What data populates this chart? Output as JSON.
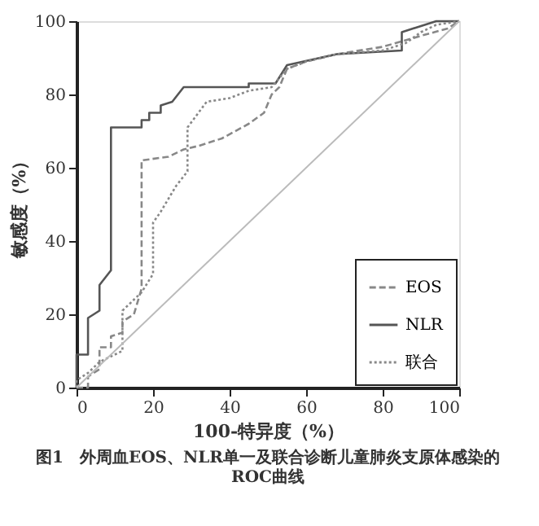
{
  "chart_data": {
    "type": "line",
    "title": "图1　外周血EOS、NLR单一及联合诊断儿童肺炎支原体感染的ROC曲线",
    "xlabel": "100-特异度（%）",
    "ylabel": "敏感度（%）",
    "xlim": [
      0,
      100
    ],
    "xticks": [
      0,
      20,
      40,
      60,
      80,
      100
    ],
    "ylim": [
      0,
      100
    ],
    "yticks": [
      0,
      20,
      40,
      60,
      80,
      100
    ],
    "grid": false,
    "legend": "bottom right",
    "marker": "none",
    "series": [
      {
        "name": "EOS",
        "color": "#888888",
        "line_style": "dashed",
        "x": [
          0,
          3,
          3,
          6,
          6,
          9,
          9,
          12,
          12,
          15,
          17,
          17,
          24,
          28,
          32,
          38,
          45,
          49,
          51,
          53,
          55,
          60,
          68,
          80,
          90,
          97,
          100
        ],
        "values": [
          0,
          0,
          3,
          5,
          11,
          11,
          14,
          15,
          18,
          20,
          27,
          62,
          63,
          65,
          66,
          68,
          72,
          75,
          80,
          82,
          87,
          89,
          91,
          93,
          96,
          98,
          100
        ]
      },
      {
        "name": "NLR",
        "color": "#555555",
        "line_style": "solid",
        "x": [
          0,
          0,
          3,
          3,
          6,
          6,
          9,
          9,
          17,
          17,
          19,
          19,
          22,
          22,
          25,
          28,
          45,
          45,
          52,
          55,
          68,
          85,
          85,
          94,
          100
        ],
        "values": [
          0,
          9,
          9,
          19,
          21,
          28,
          32,
          71,
          71,
          73,
          73,
          75,
          75,
          77,
          78,
          82,
          82,
          83,
          83,
          88,
          91,
          92,
          97,
          100,
          100
        ]
      },
      {
        "name": "联合",
        "color": "#888888",
        "line_style": "dotted",
        "x": [
          0,
          0,
          3,
          6,
          12,
          12,
          17,
          20,
          20,
          22,
          26,
          29,
          29,
          34,
          40,
          45,
          51,
          55,
          60,
          68,
          80,
          86,
          90,
          94,
          100
        ],
        "values": [
          0,
          2,
          4,
          7,
          10,
          21,
          26,
          31,
          45,
          48,
          55,
          59,
          71,
          78,
          79,
          81,
          82,
          87,
          89,
          91,
          92,
          94,
          97,
          99,
          100
        ]
      },
      {
        "color": "#bbbbbb",
        "line_style": "solid",
        "x": [
          0,
          100
        ],
        "values": [
          0,
          100
        ]
      }
    ]
  }
}
